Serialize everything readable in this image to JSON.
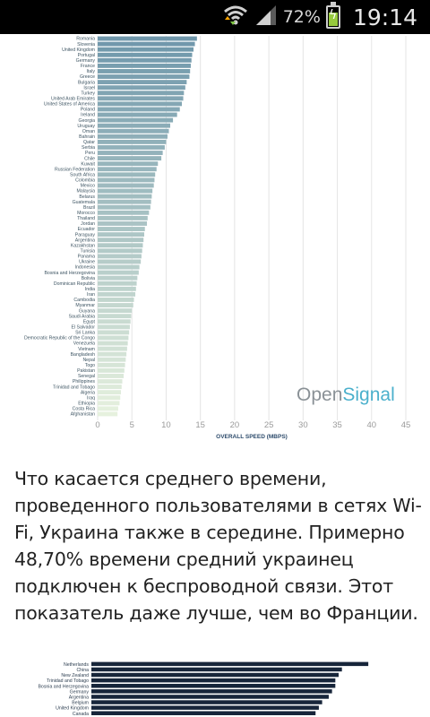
{
  "status_bar": {
    "battery_percent": "72%",
    "time": "19:14",
    "icons": [
      "wifi-icon",
      "signal-icon",
      "battery-charging-icon"
    ]
  },
  "chart_data": [
    {
      "type": "bar",
      "orientation": "horizontal",
      "categories": [
        "Romania",
        "Slovenia",
        "United Kingdom",
        "Portugal",
        "Germany",
        "France",
        "Italy",
        "Greece",
        "Bulgaria",
        "Israel",
        "Turkey",
        "United Arab Emirates",
        "United States of America",
        "Poland",
        "Ireland",
        "Georgia",
        "Uruguay",
        "Oman",
        "Bahrain",
        "Qatar",
        "Serbia",
        "Peru",
        "Chile",
        "Kuwait",
        "Russian Federation",
        "South Africa",
        "Colombia",
        "Mexico",
        "Malaysia",
        "Belarus",
        "Guatemala",
        "Brazil",
        "Morocco",
        "Thailand",
        "Jordan",
        "Ecuador",
        "Paraguay",
        "Argentina",
        "Kazakhstan",
        "Tunisia",
        "Panama",
        "Ukraine",
        "Indonesia",
        "Bosnia and Herzegovina",
        "Bolivia",
        "Dominican Republic",
        "India",
        "Iran",
        "Cambodia",
        "Myanmar",
        "Guyana",
        "Saudi Arabia",
        "Egypt",
        "El Salvador",
        "Sri Lanka",
        "Democratic Republic of the Congo",
        "Venezuela",
        "Vietnam",
        "Bangladesh",
        "Nepal",
        "Togo",
        "Pakistan",
        "Senegal",
        "Philippines",
        "Trinidad and Tobago",
        "Algeria",
        "Iraq",
        "Ethiopia",
        "Costa Rica",
        "Afghanistan"
      ],
      "values": [
        14.5,
        14.2,
        14.0,
        13.8,
        13.7,
        13.6,
        13.5,
        13.4,
        13.0,
        12.8,
        12.6,
        12.5,
        12.3,
        12.0,
        11.6,
        11.0,
        10.6,
        10.4,
        10.2,
        10.0,
        9.8,
        9.5,
        9.3,
        8.8,
        8.6,
        8.4,
        8.3,
        8.2,
        8.0,
        7.9,
        7.8,
        7.7,
        7.5,
        7.3,
        7.2,
        6.9,
        6.8,
        6.7,
        6.6,
        6.5,
        6.4,
        6.3,
        6.1,
        6.0,
        5.8,
        5.7,
        5.6,
        5.5,
        5.3,
        5.2,
        5.0,
        4.9,
        4.8,
        4.7,
        4.6,
        4.5,
        4.4,
        4.3,
        4.2,
        4.1,
        4.0,
        3.9,
        3.8,
        3.6,
        3.5,
        3.4,
        3.3,
        3.2,
        3.0,
        2.9
      ],
      "xlabel": "OVERALL SPEED (MBPS)",
      "xlim": [
        0,
        45
      ],
      "xticks": [
        "0",
        "5",
        "10",
        "15",
        "20",
        "25",
        "30",
        "35",
        "40",
        "45"
      ],
      "grid": true,
      "colors": {
        "top": "#6f97ab",
        "bottom": "#e6f1de"
      }
    },
    {
      "type": "bar",
      "orientation": "horizontal",
      "categories": [
        "Netherlands",
        "China",
        "New Zealand",
        "Trinidad and Tobago",
        "Bosnia and Herzegovina",
        "Germany",
        "Argentina",
        "Belgium",
        "United Kingdom",
        "Canada"
      ],
      "values": [
        84,
        76,
        75,
        74,
        74,
        73,
        72,
        70,
        69,
        68
      ],
      "xlim": [
        0,
        100
      ],
      "colors": {
        "bar": "#17253a"
      }
    }
  ],
  "watermark": {
    "part1": "Open",
    "part2": "Signal"
  },
  "article": {
    "paragraph": "Что касается среднего времени, проведенного пользователями в сетях Wi-Fi, Украина также в середине. Примерно 48,70% времени средний украинец подключен к беспроводной связи. Этот показатель даже лучше, чем во Франции."
  }
}
